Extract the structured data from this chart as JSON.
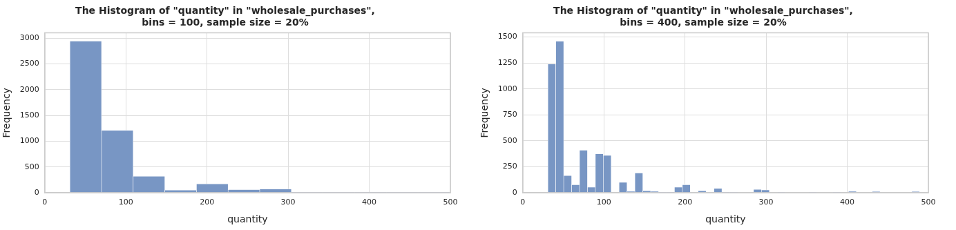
{
  "chart_data": [
    {
      "type": "histogram",
      "title": "The Histogram of \"quantity\" in \"wholesale_purchases\",\nbins = 100, sample size = 20%",
      "xlabel": "quantity",
      "ylabel": "Frequency",
      "color": "#7896c4",
      "bins": [
        31,
        70,
        109,
        148,
        187,
        226,
        265,
        304,
        343,
        382,
        421,
        460,
        499
      ],
      "values": [
        2940,
        1210,
        320,
        50,
        170,
        60,
        70,
        5,
        5,
        5,
        5,
        5
      ],
      "xlim": [
        0,
        500
      ],
      "xticks": [
        0,
        100,
        200,
        300,
        400,
        500
      ],
      "ylim": [
        0,
        3100
      ],
      "yticks": [
        0,
        500,
        1000,
        1500,
        2000,
        2500,
        3000
      ],
      "grid": true,
      "legend": false
    },
    {
      "type": "histogram",
      "title": "The Histogram of \"quantity\" in \"wholesale_purchases\",\nbins = 400, sample size = 20%",
      "xlabel": "quantity",
      "ylabel": "Frequency",
      "color": "#7896c4",
      "bins": [
        31,
        40.75,
        50.5,
        60.25,
        70,
        79.75,
        89.5,
        99.25,
        109,
        118.75,
        128.5,
        138.25,
        148,
        157.75,
        167.5,
        177.25,
        187,
        196.75,
        206.5,
        216.25,
        226,
        235.75,
        245.5,
        255.25,
        265,
        274.75,
        284.5,
        294.25,
        304,
        313.75,
        323.5,
        333.25,
        343,
        352.75,
        362.5,
        372.25,
        382,
        391.75,
        401.5,
        411.25,
        421,
        430.75,
        440.5,
        450.25,
        460,
        469.75,
        479.5,
        489.25,
        499
      ],
      "values": [
        1240,
        1460,
        165,
        77,
        410,
        54,
        375,
        360,
        0,
        100,
        13,
        190,
        18,
        13,
        2,
        2,
        54,
        77,
        0,
        18,
        0,
        41,
        2,
        2,
        0,
        0,
        31,
        26,
        0,
        2,
        0,
        0,
        0,
        2,
        0,
        0,
        2,
        0,
        13,
        0,
        0,
        12,
        0,
        0,
        0,
        0,
        12,
        0
      ],
      "xlim": [
        0,
        500
      ],
      "xticks": [
        0,
        100,
        200,
        300,
        400,
        500
      ],
      "ylim": [
        0,
        1540
      ],
      "yticks": [
        0,
        250,
        500,
        750,
        1000,
        1250,
        1500
      ],
      "grid": true,
      "legend": false
    }
  ]
}
